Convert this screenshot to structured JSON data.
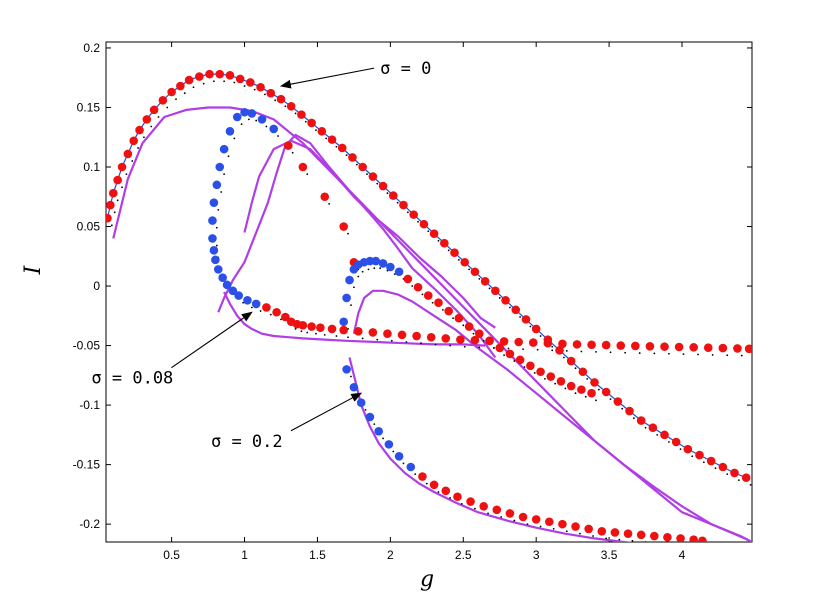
{
  "chart_data": {
    "type": "scatter",
    "title": "",
    "xlabel": "g",
    "ylabel": "I",
    "xlim": [
      0.05,
      4.48
    ],
    "ylim": [
      -0.215,
      0.205
    ],
    "grid": false,
    "x_ticks": [
      0.5,
      1,
      1.5,
      2,
      2.5,
      3,
      3.5,
      4
    ],
    "y_ticks": [
      0.2,
      0.15,
      0.1,
      0.05,
      0,
      -0.05,
      -0.1,
      -0.15,
      -0.2
    ],
    "x_tick_labels": [
      "0.5",
      "1",
      "1.5",
      "2",
      "2.5",
      "3",
      "3.5",
      "4"
    ],
    "y_tick_labels": [
      "0.2",
      "0.15",
      "0.1",
      "0.05",
      "0",
      "-0.05",
      "-0.1",
      "-0.15",
      "-0.2"
    ],
    "colors": {
      "red_markers": "#ee1111",
      "blue_markers": "#2a50e8",
      "purple_curves": "#b13de6",
      "thin_line": "#1f4fd8",
      "dotted": "#000000"
    },
    "annotations": [
      {
        "label": "σ = 0",
        "text_at": [
          1.93,
          0.178
        ],
        "arrow_to": [
          1.25,
          0.168
        ]
      },
      {
        "label": "σ = 0.08",
        "text_at": [
          -0.05,
          -0.082
        ],
        "arrow_to": [
          1.05,
          -0.022
        ]
      },
      {
        "label": "σ = 0.2",
        "text_at": [
          0.77,
          -0.135
        ],
        "arrow_to": [
          1.8,
          -0.09
        ]
      }
    ],
    "series": [
      {
        "kind": "markers",
        "x": [
          0.06,
          0.08,
          0.1,
          0.13,
          0.16,
          0.2,
          0.24,
          0.28,
          0.33,
          0.38,
          0.44,
          0.5,
          0.56,
          0.62,
          0.69,
          0.76,
          0.83,
          0.9,
          0.97,
          1.04,
          1.11,
          1.18,
          1.25,
          1.32,
          1.39,
          1.46,
          1.53,
          1.6,
          1.67,
          1.74,
          1.81,
          1.88,
          1.95,
          2.02,
          2.09,
          2.16,
          2.23,
          2.3,
          2.37,
          2.44,
          2.51,
          2.58,
          2.65,
          2.72,
          2.79,
          2.86,
          2.93,
          3.0,
          3.08,
          3.16,
          3.24,
          3.32,
          3.4,
          3.48,
          3.56,
          3.64,
          3.72,
          3.8,
          3.88,
          3.96,
          4.04,
          4.12,
          4.2,
          4.28,
          4.36,
          4.44
        ],
        "y": [
          0.057,
          0.068,
          0.078,
          0.089,
          0.1,
          0.111,
          0.122,
          0.131,
          0.14,
          0.148,
          0.156,
          0.163,
          0.168,
          0.173,
          0.176,
          0.178,
          0.178,
          0.177,
          0.174,
          0.171,
          0.167,
          0.162,
          0.157,
          0.151,
          0.144,
          0.137,
          0.13,
          0.123,
          0.116,
          0.108,
          0.1,
          0.092,
          0.084,
          0.076,
          0.068,
          0.06,
          0.052,
          0.044,
          0.036,
          0.028,
          0.02,
          0.012,
          0.004,
          -0.004,
          -0.012,
          -0.02,
          -0.028,
          -0.036,
          -0.045,
          -0.054,
          -0.063,
          -0.072,
          -0.081,
          -0.089,
          -0.097,
          -0.105,
          -0.113,
          -0.119,
          -0.125,
          -0.131,
          -0.137,
          -0.142,
          -0.147,
          -0.152,
          -0.157,
          -0.161
        ],
        "colors": [
          "#ee1111"
        ]
      },
      {
        "kind": "markers",
        "x": [
          1.75,
          1.68,
          1.55,
          1.4,
          1.3,
          1.2,
          1.12,
          1.05,
          1.0,
          0.95,
          0.9,
          0.86,
          0.83,
          0.81,
          0.79,
          0.78,
          0.78,
          0.79,
          0.8,
          0.82,
          0.85,
          0.88,
          0.92,
          0.96,
          1.02,
          1.08,
          1.15,
          1.22,
          1.28,
          1.32,
          1.36,
          1.4,
          1.46,
          1.52,
          1.6,
          1.68,
          1.78,
          1.88,
          1.98,
          2.08,
          2.18,
          2.28,
          2.38,
          2.48,
          2.58,
          2.68,
          2.78,
          2.88,
          2.98,
          3.08,
          3.18,
          3.28,
          3.38,
          3.48,
          3.58,
          3.68,
          3.78,
          3.88,
          3.98,
          4.08,
          4.18,
          4.28,
          4.38,
          4.46
        ],
        "y": [
          0.02,
          0.05,
          0.075,
          0.1,
          0.118,
          0.132,
          0.14,
          0.145,
          0.146,
          0.142,
          0.13,
          0.115,
          0.1,
          0.085,
          0.07,
          0.055,
          0.04,
          0.03,
          0.022,
          0.014,
          0.007,
          0.001,
          -0.004,
          -0.008,
          -0.012,
          -0.015,
          -0.018,
          -0.022,
          -0.026,
          -0.03,
          -0.032,
          -0.033,
          -0.034,
          -0.035,
          -0.036,
          -0.037,
          -0.038,
          -0.039,
          -0.04,
          -0.041,
          -0.042,
          -0.043,
          -0.044,
          -0.045,
          -0.0455,
          -0.046,
          -0.0465,
          -0.047,
          -0.0475,
          -0.048,
          -0.0485,
          -0.049,
          -0.0493,
          -0.0496,
          -0.05,
          -0.0503,
          -0.0506,
          -0.0509,
          -0.0512,
          -0.0515,
          -0.0518,
          -0.0521,
          -0.0524,
          -0.0527
        ],
        "colors": [
          "#ee1111"
        ]
      },
      {
        "kind": "markers",
        "x": [
          1.68,
          1.7,
          1.72,
          1.75,
          1.78,
          1.82,
          1.86,
          1.9,
          1.95,
          2.0,
          2.06,
          2.12,
          2.19,
          2.26,
          2.33,
          2.4,
          2.47,
          2.54,
          2.61,
          2.68,
          2.75,
          2.82,
          2.89,
          2.96,
          3.03,
          3.1,
          3.17,
          3.24,
          3.31,
          3.38
        ],
        "y": [
          -0.03,
          -0.01,
          0.005,
          0.014,
          0.018,
          0.02,
          0.021,
          0.021,
          0.019,
          0.016,
          0.012,
          0.006,
          -0.001,
          -0.008,
          -0.014,
          -0.021,
          -0.027,
          -0.034,
          -0.04,
          -0.046,
          -0.052,
          -0.057,
          -0.062,
          -0.067,
          -0.072,
          -0.076,
          -0.08,
          -0.084,
          -0.087,
          -0.09
        ],
        "colors": [
          "#ee1111"
        ]
      },
      {
        "kind": "markers",
        "x": [
          1.7,
          1.75,
          1.8,
          1.86,
          1.92,
          1.99,
          2.06,
          2.14,
          2.22,
          2.3,
          2.38,
          2.46,
          2.55,
          2.64,
          2.73,
          2.82,
          2.91,
          3.0,
          3.09,
          3.18,
          3.27,
          3.36,
          3.45,
          3.54,
          3.63,
          3.72,
          3.81,
          3.9,
          3.99,
          4.08,
          4.14
        ],
        "y": [
          -0.07,
          -0.085,
          -0.098,
          -0.11,
          -0.122,
          -0.133,
          -0.143,
          -0.152,
          -0.16,
          -0.167,
          -0.172,
          -0.177,
          -0.181,
          -0.185,
          -0.188,
          -0.191,
          -0.194,
          -0.196,
          -0.198,
          -0.2,
          -0.202,
          -0.204,
          -0.206,
          -0.207,
          -0.208,
          -0.209,
          -0.21,
          -0.211,
          -0.212,
          -0.213,
          -0.214
        ],
        "colors": [
          "#ee1111"
        ]
      },
      {
        "kind": "line",
        "x": [
          0.1,
          0.2,
          0.3,
          0.45,
          0.6,
          0.75,
          0.9,
          1.05,
          1.2,
          1.4,
          1.6,
          1.8,
          2.0,
          2.2,
          2.4,
          2.6,
          2.8,
          3.0,
          3.2,
          3.4,
          3.6,
          3.8,
          4.0,
          4.2,
          4.4,
          4.48
        ],
        "y": [
          0.04,
          0.09,
          0.12,
          0.142,
          0.148,
          0.15,
          0.15,
          0.147,
          0.14,
          0.12,
          0.095,
          0.07,
          0.045,
          0.02,
          -0.005,
          -0.03,
          -0.055,
          -0.08,
          -0.105,
          -0.13,
          -0.15,
          -0.17,
          -0.19,
          -0.2,
          -0.21,
          -0.215
        ],
        "colors": [
          "#b13de6"
        ]
      },
      {
        "kind": "line",
        "x": [
          0.82,
          0.86,
          0.92,
          1.0,
          1.08,
          1.16,
          1.22,
          1.28,
          1.35,
          1.45,
          1.58,
          1.72,
          1.85,
          1.95,
          2.05,
          2.15,
          2.3,
          2.45,
          2.6,
          2.72
        ],
        "y": [
          -0.022,
          -0.01,
          0.005,
          0.02,
          0.045,
          0.07,
          0.095,
          0.118,
          0.127,
          0.12,
          0.1,
          0.08,
          0.062,
          0.048,
          0.032,
          0.015,
          -0.002,
          -0.02,
          -0.04,
          -0.06
        ],
        "colors": [
          "#b13de6"
        ]
      },
      {
        "kind": "line",
        "x": [
          1.0,
          1.05,
          1.1,
          1.2,
          1.32,
          1.45,
          1.6,
          1.75,
          1.9,
          2.05,
          2.2,
          2.35,
          2.5,
          2.62,
          2.72
        ],
        "y": [
          0.045,
          0.07,
          0.092,
          0.115,
          0.122,
          0.115,
          0.096,
          0.075,
          0.057,
          0.042,
          0.024,
          0.008,
          -0.01,
          -0.027,
          -0.035
        ],
        "colors": [
          "#b13de6"
        ]
      },
      {
        "kind": "line",
        "x": [
          1.75,
          1.78,
          1.82,
          1.88,
          1.95,
          2.05,
          2.15,
          2.3,
          2.45,
          2.6,
          2.8,
          3.0,
          3.2,
          3.4,
          3.6,
          3.8,
          4.0,
          4.2,
          4.45
        ],
        "y": [
          -0.04,
          -0.023,
          -0.01,
          -0.004,
          -0.004,
          -0.007,
          -0.013,
          -0.025,
          -0.037,
          -0.052,
          -0.07,
          -0.09,
          -0.11,
          -0.13,
          -0.15,
          -0.168,
          -0.185,
          -0.2,
          -0.213
        ],
        "colors": [
          "#b13de6"
        ]
      },
      {
        "kind": "line",
        "x": [
          1.72,
          1.76,
          1.8,
          1.86,
          1.92,
          2.0,
          2.1,
          2.2,
          2.3,
          2.45,
          2.6,
          2.8,
          3.0,
          3.2,
          3.4,
          3.6,
          3.75
        ],
        "y": [
          -0.06,
          -0.08,
          -0.1,
          -0.118,
          -0.132,
          -0.145,
          -0.157,
          -0.166,
          -0.173,
          -0.182,
          -0.19,
          -0.197,
          -0.203,
          -0.208,
          -0.212,
          -0.215,
          -0.217
        ],
        "colors": [
          "#b13de6"
        ]
      },
      {
        "kind": "line",
        "x": [
          0.86,
          0.9,
          0.95,
          1.0,
          1.05,
          1.12,
          1.2,
          1.3,
          1.4,
          1.55,
          1.7,
          1.9,
          2.1,
          2.3,
          2.5,
          2.65
        ],
        "y": [
          -0.005,
          -0.015,
          -0.025,
          -0.032,
          -0.036,
          -0.04,
          -0.042,
          -0.043,
          -0.044,
          -0.045,
          -0.046,
          -0.047,
          -0.048,
          -0.049,
          -0.049,
          -0.05
        ],
        "colors": [
          "#b13de6"
        ]
      }
    ]
  }
}
